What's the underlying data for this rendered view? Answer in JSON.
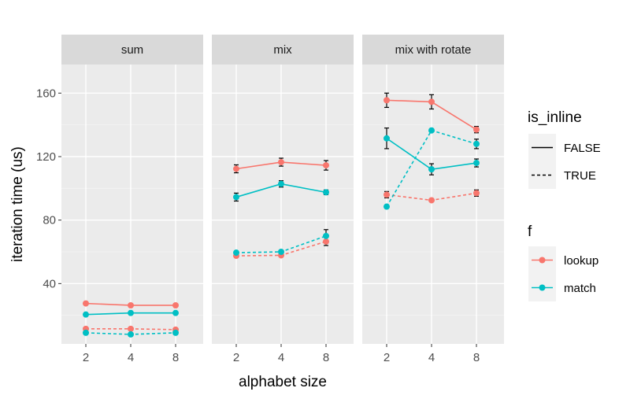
{
  "chart_data": {
    "type": "line",
    "xlabel": "alphabet size",
    "ylabel": "iteration time (us)",
    "x": [
      2,
      4,
      8
    ],
    "x_tick_labels": [
      "2",
      "4",
      "8"
    ],
    "ylim": [
      2,
      178
    ],
    "y_ticks": [
      40,
      80,
      120,
      160
    ],
    "y_tick_labels": [
      "40",
      "80",
      "120",
      "160"
    ],
    "grid": true,
    "colors": {
      "lookup": "#F8766D",
      "match": "#00BFC4"
    },
    "legends": {
      "is_inline": {
        "title": "is_inline",
        "items": [
          {
            "label": "FALSE",
            "linetype": "solid"
          },
          {
            "label": "TRUE",
            "linetype": "dashed"
          }
        ]
      },
      "f": {
        "title": "f",
        "items": [
          {
            "label": "lookup",
            "color": "#F8766D"
          },
          {
            "label": "match",
            "color": "#00BFC4"
          }
        ]
      }
    },
    "facets": [
      {
        "title": "sum",
        "series": [
          {
            "f": "lookup",
            "is_inline": "FALSE",
            "values": [
              27.5,
              26.3,
              26.3
            ],
            "errors": [
              0,
              0,
              0
            ]
          },
          {
            "f": "match",
            "is_inline": "FALSE",
            "values": [
              20.5,
              21.5,
              21.5
            ],
            "errors": [
              0,
              0,
              0
            ]
          },
          {
            "f": "lookup",
            "is_inline": "TRUE",
            "values": [
              11.5,
              11.5,
              11.0
            ],
            "errors": [
              0,
              0,
              0
            ]
          },
          {
            "f": "match",
            "is_inline": "TRUE",
            "values": [
              9.0,
              8.0,
              9.0
            ],
            "errors": [
              0,
              0,
              0
            ]
          }
        ]
      },
      {
        "title": "mix",
        "series": [
          {
            "f": "lookup",
            "is_inline": "FALSE",
            "values": [
              112.3,
              116.5,
              114.5
            ],
            "errors": [
              2.5,
              2.5,
              3.0
            ]
          },
          {
            "f": "match",
            "is_inline": "FALSE",
            "values": [
              94.5,
              102.8,
              97.5
            ],
            "errors": [
              2.5,
              2.0,
              1.5
            ]
          },
          {
            "f": "lookup",
            "is_inline": "TRUE",
            "values": [
              57.5,
              57.8,
              66.5
            ],
            "errors": [
              0,
              0,
              2.5
            ]
          },
          {
            "f": "match",
            "is_inline": "TRUE",
            "values": [
              59.5,
              60.0,
              70.0
            ],
            "errors": [
              0,
              0,
              4.0
            ]
          }
        ]
      },
      {
        "title": "mix with rotate",
        "series": [
          {
            "f": "lookup",
            "is_inline": "FALSE",
            "values": [
              155.5,
              154.5,
              137.0
            ],
            "errors": [
              4.5,
              4.5,
              2.0
            ]
          },
          {
            "f": "match",
            "is_inline": "FALSE",
            "values": [
              131.5,
              112.0,
              116.0
            ],
            "errors": [
              6.5,
              3.5,
              2.5
            ]
          },
          {
            "f": "lookup",
            "is_inline": "TRUE",
            "values": [
              96.0,
              92.5,
              97.0
            ],
            "errors": [
              2.0,
              0,
              2.0
            ]
          },
          {
            "f": "match",
            "is_inline": "TRUE",
            "values": [
              88.5,
              136.5,
              128.0
            ],
            "errors": [
              1.0,
              0,
              3.0
            ]
          }
        ]
      }
    ]
  }
}
